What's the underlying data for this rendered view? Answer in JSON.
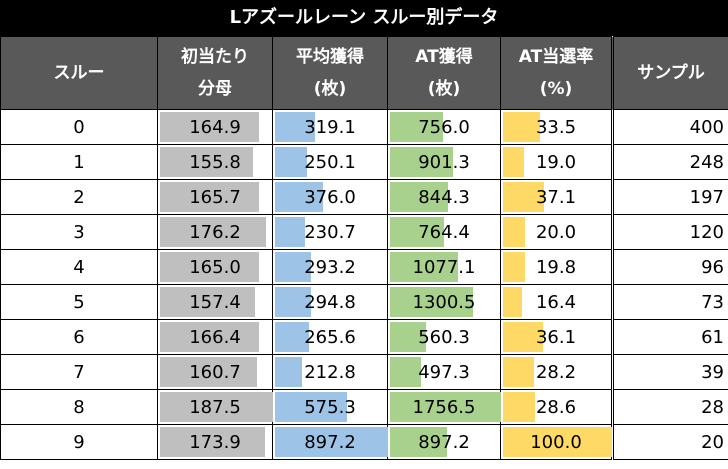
{
  "title": "Lアズールレーン スルー別データ",
  "headers": [
    {
      "line1": "スルー",
      "line2": ""
    },
    {
      "line1": "初当たり",
      "line2": "分母"
    },
    {
      "line1": "平均獲得",
      "line2": "(枚)"
    },
    {
      "line1": "AT獲得",
      "line2": "(枚)"
    },
    {
      "line1": "AT当選率",
      "line2": "(%)"
    },
    {
      "line1": "サンプル",
      "line2": ""
    }
  ],
  "colors": {
    "gray": "#bfbfbf",
    "blue": "#9dc3e6",
    "green": "#a9d18e",
    "yellow": "#ffd966",
    "header_bg": "#595959",
    "title_bg": "#000000"
  },
  "rows": [
    {
      "thru": "0",
      "denom": "164.9",
      "avg": "319.1",
      "at": "756.0",
      "rate": "33.5",
      "sample": "400",
      "bars": [
        87,
        35,
        47,
        34
      ]
    },
    {
      "thru": "1",
      "denom": "155.8",
      "avg": "250.1",
      "at": "901.3",
      "rate": "19.0",
      "sample": "248",
      "bars": [
        82,
        28,
        56,
        19
      ]
    },
    {
      "thru": "2",
      "denom": "165.7",
      "avg": "376.0",
      "at": "844.3",
      "rate": "37.1",
      "sample": "197",
      "bars": [
        87,
        42,
        52,
        37
      ]
    },
    {
      "thru": "3",
      "denom": "176.2",
      "avg": "230.7",
      "at": "764.4",
      "rate": "20.0",
      "sample": "120",
      "bars": [
        93,
        26,
        48,
        20
      ]
    },
    {
      "thru": "4",
      "denom": "165.0",
      "avg": "293.2",
      "at": "1077.1",
      "rate": "19.8",
      "sample": "96",
      "bars": [
        87,
        32,
        61,
        20
      ]
    },
    {
      "thru": "5",
      "denom": "157.4",
      "avg": "294.8",
      "at": "1300.5",
      "rate": "16.4",
      "sample": "73",
      "bars": [
        83,
        32,
        74,
        17
      ]
    },
    {
      "thru": "6",
      "denom": "166.4",
      "avg": "265.6",
      "at": "560.3",
      "rate": "36.1",
      "sample": "61",
      "bars": [
        87,
        30,
        32,
        36
      ]
    },
    {
      "thru": "7",
      "denom": "160.7",
      "avg": "212.8",
      "at": "497.3",
      "rate": "28.2",
      "sample": "39",
      "bars": [
        85,
        24,
        28,
        28
      ]
    },
    {
      "thru": "8",
      "denom": "187.5",
      "avg": "575.3",
      "at": "1756.5",
      "rate": "28.6",
      "sample": "28",
      "bars": [
        99,
        63,
        99,
        29
      ]
    },
    {
      "thru": "9",
      "denom": "173.9",
      "avg": "897.2",
      "at": "897.2",
      "rate": "100.0",
      "sample": "20",
      "bars": [
        92,
        99,
        51,
        99
      ]
    }
  ]
}
